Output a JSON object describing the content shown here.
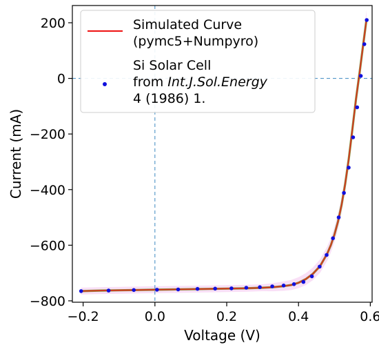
{
  "chart_data": {
    "type": "line",
    "title": "",
    "xlabel": "Voltage (V)",
    "ylabel": "Current (mA)",
    "xlim": [
      -0.23,
      0.605
    ],
    "ylim": [
      -805,
      262
    ],
    "xticks": [
      -0.2,
      0.0,
      0.2,
      0.4,
      0.6
    ],
    "xtick_labels": [
      "−0.2",
      "0.0",
      "0.2",
      "0.4",
      "0.6"
    ],
    "yticks": [
      -800,
      -600,
      -400,
      -200,
      0,
      200
    ],
    "ytick_labels": [
      "−800",
      "−600",
      "−400",
      "−200",
      "0",
      "200"
    ],
    "grid": false,
    "reference_lines": {
      "x": 0,
      "y": 0,
      "style": "dashed",
      "color": "#3a87c0"
    },
    "legend": {
      "position": "top-left",
      "entries": [
        {
          "series": "simulated",
          "line1": "Simulated Curve",
          "line2": "(pymc5+Numpyro)"
        },
        {
          "series": "measured",
          "line1": "Si Solar Cell",
          "line2_prefix": "from ",
          "line2_italic": "Int.J.Sol.Energy",
          "line3": "4 (1986) 1."
        }
      ]
    },
    "series": [
      {
        "id": "simulated",
        "name": "Simulated Curve (pymc5+Numpyro)",
        "kind": "line",
        "color": "#ee1111",
        "band_color": "#f4c4ee",
        "x": [
          -0.2057,
          -0.15,
          -0.1,
          -0.05,
          0.0,
          0.05,
          0.1,
          0.15,
          0.2,
          0.25,
          0.3,
          0.33,
          0.36,
          0.38,
          0.4,
          0.42,
          0.44,
          0.46,
          0.48,
          0.49,
          0.5,
          0.51,
          0.52,
          0.53,
          0.54,
          0.55,
          0.56,
          0.57,
          0.58,
          0.5894
        ],
        "y": [
          -765,
          -763,
          -762,
          -761,
          -760,
          -759,
          -758,
          -757,
          -756,
          -755,
          -753,
          -751,
          -747,
          -743,
          -735,
          -722,
          -703,
          -675,
          -630,
          -600,
          -562,
          -515,
          -455,
          -380,
          -290,
          -185,
          -75,
          20,
          120,
          212
        ]
      },
      {
        "id": "measured",
        "name": "Si Solar Cell from Int.J.Sol.Energy 4 (1986) 1.",
        "kind": "scatter",
        "color": "#1010dd",
        "x": [
          -0.2057,
          -0.1291,
          -0.0588,
          0.0057,
          0.0646,
          0.1185,
          0.1678,
          0.2132,
          0.2545,
          0.2924,
          0.3269,
          0.3585,
          0.3873,
          0.4137,
          0.4373,
          0.459,
          0.4784,
          0.496,
          0.5119,
          0.5265,
          0.5398,
          0.5521,
          0.5633,
          0.5736,
          0.5833,
          0.59
        ],
        "y": [
          -765,
          -763,
          -761,
          -760,
          -759,
          -757,
          -756,
          -755,
          -753,
          -751,
          -748,
          -745,
          -740,
          -732,
          -712,
          -677,
          -635,
          -575,
          -500,
          -412,
          -321,
          -212,
          -104,
          9,
          123,
          210
        ]
      }
    ]
  }
}
